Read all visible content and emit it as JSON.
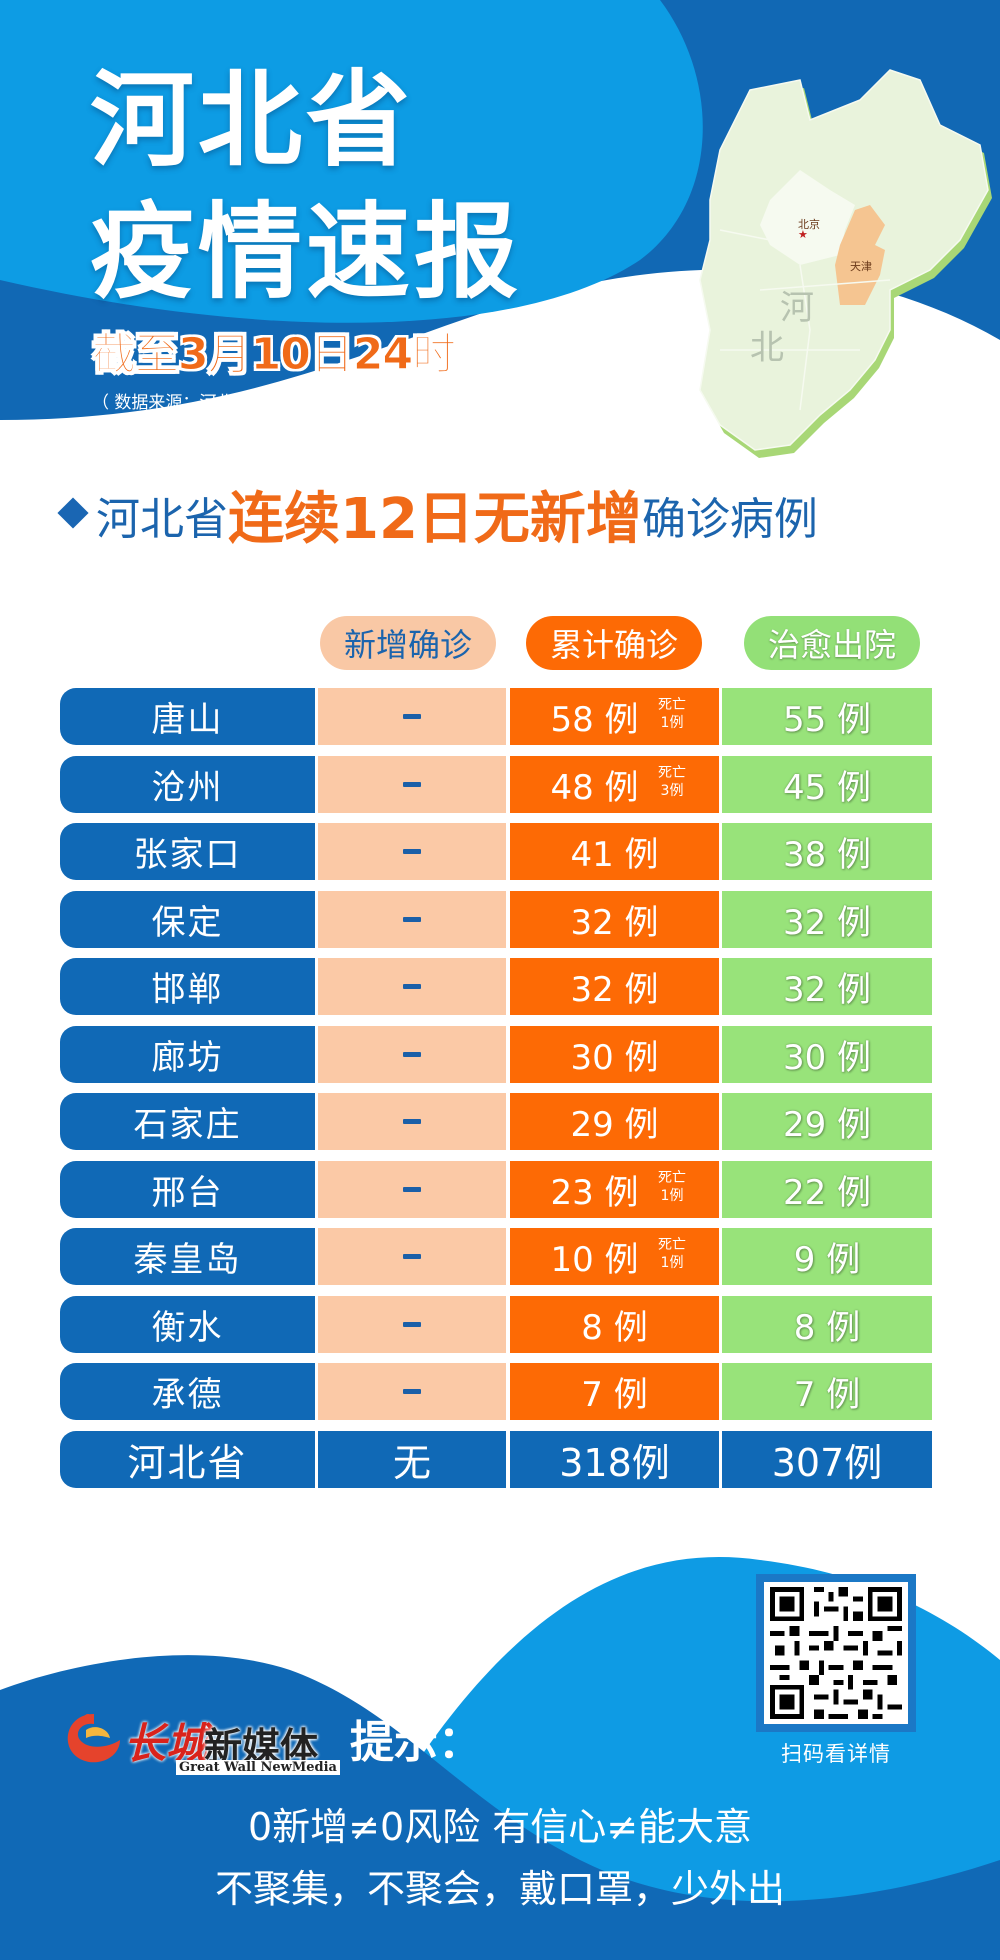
{
  "header": {
    "title_line1": "河北省",
    "title_line2": "疫情速报",
    "as_of": "截至3月10日24时",
    "source": "（ 数据来源：河北省卫健委 ）"
  },
  "map": {
    "province_label_1": "河",
    "province_label_2": "北",
    "beijing_label": "北京",
    "tianjin_label": "天津",
    "colors": {
      "hebei": "#e9f3dc",
      "beijing": "#f6faf0",
      "tianjin": "#f5c591",
      "edge": "#a8d776"
    }
  },
  "headline": {
    "prefix": "河北省",
    "highlight": "连续12日无新增",
    "suffix": "确诊病例"
  },
  "table": {
    "columns": {
      "new": "新增确诊",
      "total": "累计确诊",
      "cured": "治愈出院"
    },
    "death_label": "死亡",
    "rows": [
      {
        "city": "唐山",
        "new": "–",
        "total": "58 例",
        "death": "1例",
        "cured": "55 例"
      },
      {
        "city": "沧州",
        "new": "–",
        "total": "48 例",
        "death": "3例",
        "cured": "45 例"
      },
      {
        "city": "张家口",
        "new": "–",
        "total": "41 例",
        "death": null,
        "cured": "38 例"
      },
      {
        "city": "保定",
        "new": "–",
        "total": "32 例",
        "death": null,
        "cured": "32 例"
      },
      {
        "city": "邯郸",
        "new": "–",
        "total": "32 例",
        "death": null,
        "cured": "32 例"
      },
      {
        "city": "廊坊",
        "new": "–",
        "total": "30 例",
        "death": null,
        "cured": "30 例"
      },
      {
        "city": "石家庄",
        "new": "–",
        "total": "29 例",
        "death": null,
        "cured": "29 例"
      },
      {
        "city": "邢台",
        "new": "–",
        "total": "23 例",
        "death": "1例",
        "cured": "22 例"
      },
      {
        "city": "秦皇岛",
        "new": "–",
        "total": "10 例",
        "death": "1例",
        "cured": "9 例"
      },
      {
        "city": "衡水",
        "new": "–",
        "total": "8 例",
        "death": null,
        "cured": "8 例"
      },
      {
        "city": "承德",
        "new": "–",
        "total": "7 例",
        "death": null,
        "cured": "7 例"
      }
    ],
    "summary": {
      "city": "河北省",
      "new": "无",
      "total": "318例",
      "cured": "307例"
    },
    "colors": {
      "city_bg": "#1069b6",
      "new_bg": "#fbc9a6",
      "total_bg": "#fd6a05",
      "cured_bg": "#98e37a"
    }
  },
  "footer": {
    "logo_cn_script": "长城",
    "logo_cn": "新媒体",
    "logo_en": "Great Wall NewMedia",
    "tip_label": "提示：",
    "qr_caption": "扫码看详情",
    "slogan_line1": "0新增≠0风险  有信心≠能大意",
    "slogan_line2": "不聚集，不聚会，戴口罩，少外出"
  }
}
